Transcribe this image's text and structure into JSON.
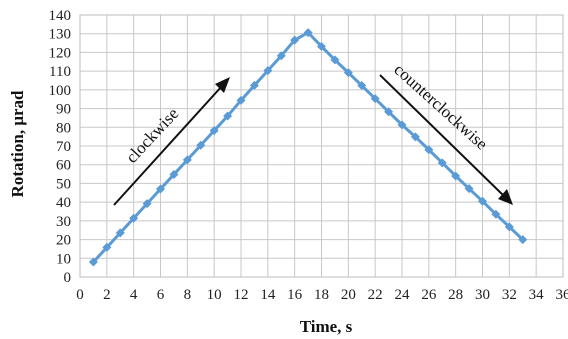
{
  "chart_data": {
    "type": "line",
    "xlabel": "Time, s",
    "ylabel": "Rotation, μrad",
    "xlim": [
      0,
      36
    ],
    "ylim": [
      0,
      140
    ],
    "xticks": [
      0,
      2,
      4,
      6,
      8,
      10,
      12,
      14,
      16,
      18,
      20,
      22,
      24,
      26,
      28,
      30,
      32,
      34,
      36
    ],
    "yticks": [
      0,
      10,
      20,
      30,
      40,
      50,
      60,
      70,
      80,
      90,
      100,
      110,
      120,
      130,
      140
    ],
    "grid": true,
    "legend": "none",
    "series": [
      {
        "color": "#5b9bd5",
        "marker": "diamond",
        "x": [
          1,
          2,
          3,
          4,
          5,
          6,
          7,
          8,
          9,
          10,
          11,
          12,
          13,
          14,
          15,
          16,
          17,
          18,
          19,
          20,
          21,
          22,
          23,
          24,
          25,
          26,
          27,
          28,
          29,
          30,
          31,
          32,
          33
        ],
        "y": [
          8,
          15.8,
          23.6,
          31.4,
          39.2,
          47,
          54.8,
          62.6,
          70.4,
          78.2,
          86,
          94.4,
          102.4,
          110.3,
          118.2,
          126.6,
          130.6,
          123.2,
          116,
          109.2,
          102.3,
          95.3,
          88.3,
          81.3,
          74.9,
          68,
          61,
          54,
          47.2,
          40.5,
          33.5,
          26.8,
          20
        ]
      }
    ],
    "annotations": [
      {
        "text": "clockwise",
        "arrow": "up-right"
      },
      {
        "text": "counterclockwise",
        "arrow": "down-right"
      }
    ]
  }
}
